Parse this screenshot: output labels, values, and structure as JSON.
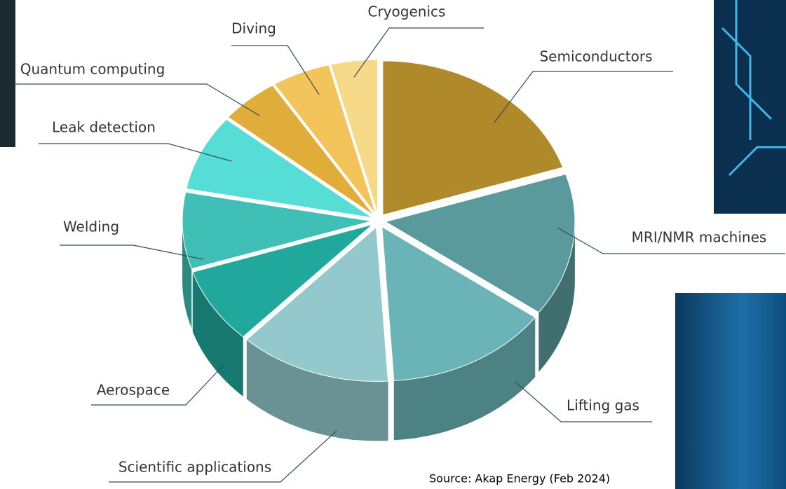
{
  "chart_data": {
    "type": "pie",
    "categories": [
      "Semiconductors",
      "MRI/NMR machines",
      "Lifting gas",
      "Scientific applications",
      "Aerospace",
      "Welding",
      "Leak detection",
      "Quantum computing",
      "Diving",
      "Cryogenics"
    ],
    "values": [
      20,
      15,
      14,
      13,
      8,
      8,
      8,
      5,
      5,
      4
    ],
    "colors": [
      "#b08a2a",
      "#5a9a9c",
      "#6ab4b8",
      "#93c9cc",
      "#21a89d",
      "#3fbfb5",
      "#56ddd6",
      "#e0ad3a",
      "#f2c45a",
      "#f7d98a"
    ],
    "source": "Source: Akap Energy (Feb 2024)"
  }
}
